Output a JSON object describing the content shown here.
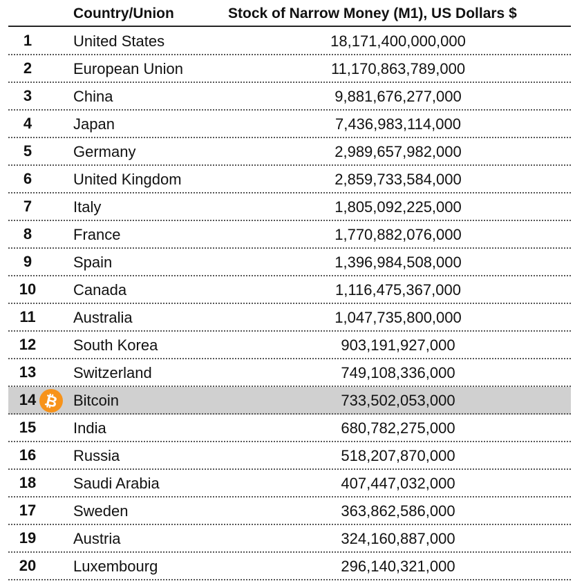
{
  "chart_data": {
    "type": "table",
    "columns": [
      "",
      "Country/Union",
      "Stock of Narrow Money (M1), US Dollars $"
    ],
    "rows": [
      {
        "rank": "1",
        "country": "United States",
        "value": "18,171,400,000,000"
      },
      {
        "rank": "2",
        "country": "European Union",
        "value": "11,170,863,789,000"
      },
      {
        "rank": "3",
        "country": "China",
        "value": "9,881,676,277,000"
      },
      {
        "rank": "4",
        "country": "Japan",
        "value": "7,436,983,114,000"
      },
      {
        "rank": "5",
        "country": "Germany",
        "value": "2,989,657,982,000"
      },
      {
        "rank": "6",
        "country": "United Kingdom",
        "value": "2,859,733,584,000"
      },
      {
        "rank": "7",
        "country": "Italy",
        "value": "1,805,092,225,000"
      },
      {
        "rank": "8",
        "country": "France",
        "value": "1,770,882,076,000"
      },
      {
        "rank": "9",
        "country": "Spain",
        "value": "1,396,984,508,000"
      },
      {
        "rank": "10",
        "country": "Canada",
        "value": "1,116,475,367,000"
      },
      {
        "rank": "11",
        "country": "Australia",
        "value": "1,047,735,800,000"
      },
      {
        "rank": "12",
        "country": "South Korea",
        "value": "903,191,927,000"
      },
      {
        "rank": "13",
        "country": "Switzerland",
        "value": "749,108,336,000"
      },
      {
        "rank": "14",
        "country": "Bitcoin",
        "value": "733,502,053,000",
        "highlight": true,
        "icon": "bitcoin-icon"
      },
      {
        "rank": "15",
        "country": "India",
        "value": "680,782,275,000"
      },
      {
        "rank": "16",
        "country": "Russia",
        "value": "518,207,870,000"
      },
      {
        "rank": "18",
        "country": "Saudi Arabia",
        "value": "407,447,032,000"
      },
      {
        "rank": "17",
        "country": "Sweden",
        "value": "363,862,586,000"
      },
      {
        "rank": "19",
        "country": "Austria",
        "value": "324,160,887,000"
      },
      {
        "rank": "20",
        "country": "Luxembourg",
        "value": "296,140,321,000"
      }
    ]
  },
  "colors": {
    "highlight_row": "#d0d0d0",
    "bitcoin_orange": "#f7931a"
  },
  "bitcoin_symbol": "₿"
}
